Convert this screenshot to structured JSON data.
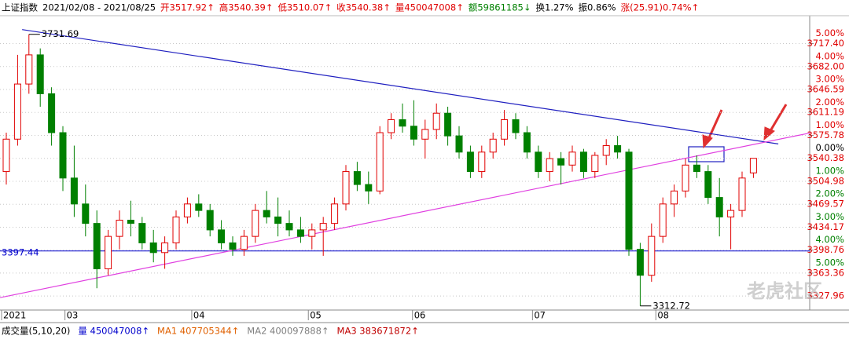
{
  "chart_data": {
    "type": "candlestick",
    "header": [
      {
        "text": "上证指数",
        "color": "#000000"
      },
      {
        "text": "2021/02/08 - 2021/08/25",
        "color": "#000000"
      },
      {
        "text": "开3517.92↑",
        "color": "#e00000"
      },
      {
        "text": "高3540.39↑",
        "color": "#e00000"
      },
      {
        "text": "低3510.07↑",
        "color": "#e00000"
      },
      {
        "text": "收3540.38↑",
        "color": "#e00000"
      },
      {
        "text": "量450047008↑",
        "color": "#e00000"
      },
      {
        "text": "额59861185↓",
        "color": "#008000"
      },
      {
        "text": "换1.27%",
        "color": "#000000"
      },
      {
        "text": "振0.86%",
        "color": "#000000"
      },
      {
        "text": "涨(25.91)0.74%↑",
        "color": "#e00000"
      }
    ],
    "open": [
      3520,
      3570,
      3655,
      3700,
      3640,
      3580,
      3510,
      3470,
      3440,
      3370,
      3420,
      3445,
      3440,
      3410,
      3395,
      3410,
      3450,
      3470,
      3460,
      3430,
      3410,
      3400,
      3420,
      3460,
      3450,
      3440,
      3430,
      3420,
      3430,
      3440,
      3470,
      3520,
      3500,
      3490,
      3580,
      3600,
      3590,
      3570,
      3585,
      3610,
      3575,
      3550,
      3520,
      3550,
      3570,
      3600,
      3580,
      3550,
      3520,
      3540,
      3530,
      3550,
      3520,
      3545,
      3560,
      3550,
      3400,
      3360,
      3420,
      3470,
      3490,
      3530,
      3520,
      3480,
      3450,
      3460,
      3517.92
    ],
    "high": [
      3580,
      3700,
      3731.69,
      3710,
      3650,
      3590,
      3560,
      3500,
      3460,
      3430,
      3460,
      3475,
      3450,
      3430,
      3420,
      3460,
      3480,
      3485,
      3470,
      3445,
      3420,
      3430,
      3470,
      3490,
      3480,
      3460,
      3450,
      3440,
      3450,
      3480,
      3530,
      3535,
      3520,
      3590,
      3610,
      3625,
      3630,
      3600,
      3625,
      3620,
      3590,
      3560,
      3560,
      3580,
      3615,
      3610,
      3590,
      3560,
      3550,
      3550,
      3560,
      3555,
      3550,
      3570,
      3575,
      3555,
      3410,
      3440,
      3480,
      3500,
      3540,
      3545,
      3530,
      3510,
      3470,
      3520,
      3540.39
    ],
    "low": [
      3500,
      3560,
      3640,
      3620,
      3560,
      3490,
      3450,
      3420,
      3340,
      3360,
      3400,
      3420,
      3400,
      3380,
      3370,
      3400,
      3440,
      3450,
      3420,
      3400,
      3390,
      3390,
      3410,
      3440,
      3420,
      3420,
      3410,
      3400,
      3390,
      3430,
      3460,
      3490,
      3470,
      3485,
      3570,
      3580,
      3560,
      3540,
      3570,
      3560,
      3540,
      3510,
      3510,
      3540,
      3560,
      3570,
      3540,
      3510,
      3505,
      3500,
      3520,
      3510,
      3510,
      3530,
      3540,
      3390,
      3312.72,
      3350,
      3410,
      3450,
      3480,
      3510,
      3470,
      3420,
      3400,
      3450,
      3510.07
    ],
    "close": [
      3570,
      3655,
      3700,
      3640,
      3580,
      3510,
      3470,
      3440,
      3370,
      3420,
      3445,
      3440,
      3410,
      3395,
      3410,
      3450,
      3470,
      3460,
      3430,
      3410,
      3400,
      3420,
      3460,
      3450,
      3440,
      3430,
      3420,
      3430,
      3440,
      3470,
      3520,
      3500,
      3490,
      3580,
      3600,
      3590,
      3570,
      3585,
      3610,
      3575,
      3550,
      3520,
      3550,
      3570,
      3600,
      3580,
      3550,
      3520,
      3540,
      3530,
      3550,
      3520,
      3545,
      3560,
      3550,
      3400,
      3360,
      3420,
      3470,
      3490,
      3530,
      3520,
      3480,
      3450,
      3460,
      3510,
      3540.38
    ],
    "up_color": "#e00000",
    "down_color": "#008000",
    "ylim": [
      3310,
      3758
    ],
    "yticks": [
      {
        "value": 3717.4,
        "label": "3717.40"
      },
      {
        "value": 3682.0,
        "label": "3682.00"
      },
      {
        "value": 3646.59,
        "label": "3646.59"
      },
      {
        "value": 3611.19,
        "label": "3611.19"
      },
      {
        "value": 3575.78,
        "label": "3575.78"
      },
      {
        "value": 3540.38,
        "label": "3540.38"
      },
      {
        "value": 3504.98,
        "label": "3504.98"
      },
      {
        "value": 3469.57,
        "label": "3469.57"
      },
      {
        "value": 3434.17,
        "label": "3434.17"
      },
      {
        "value": 3398.76,
        "label": "3398.76"
      },
      {
        "value": 3363.36,
        "label": "3363.36"
      },
      {
        "value": 3327.96,
        "label": "3327.96"
      }
    ],
    "pct_ticks": [
      {
        "value": 5,
        "label": "5.00%"
      },
      {
        "value": 4,
        "label": "4.00%"
      },
      {
        "value": 3,
        "label": "3.00%"
      },
      {
        "value": 2,
        "label": "2.00%"
      },
      {
        "value": 1,
        "label": "1.00%"
      },
      {
        "value": 0,
        "label": "0.00%"
      },
      {
        "value": -1,
        "label": "1.00%"
      },
      {
        "value": -2,
        "label": "2.00%"
      },
      {
        "value": -3,
        "label": "3.00%"
      },
      {
        "value": -4,
        "label": "4.00%"
      },
      {
        "value": -5,
        "label": "5.00%"
      }
    ],
    "xticks": [
      {
        "value": 0,
        "label": "2021"
      },
      {
        "value": 5.6,
        "label": "03"
      },
      {
        "value": 16.8,
        "label": "04"
      },
      {
        "value": 27.1,
        "label": "05"
      },
      {
        "value": 36.3,
        "label": "06"
      },
      {
        "value": 46.9,
        "label": "07"
      },
      {
        "value": 57.8,
        "label": "08"
      }
    ],
    "annotations": [
      {
        "text": "3731.69",
        "x": 2,
        "y": 3731.69
      },
      {
        "text": "3312.72",
        "x": 56,
        "y": 3312.72
      }
    ],
    "hline": {
      "value": 3397.44,
      "label": "3397.44",
      "color": "#0000cc"
    },
    "trend_lines": [
      {
        "color": "#2020c0",
        "from": [
          1.4,
          3739
        ],
        "to": [
          68.2,
          3562.6
        ]
      },
      {
        "color": "#e040e0",
        "from": [
          -0.55,
          3325.5
        ],
        "to": [
          71,
          3579.5
        ]
      }
    ],
    "watermark": "老虎社区",
    "footer": [
      {
        "text": "成交量(5,10,20)",
        "color": "#000000"
      },
      {
        "text": "量 450047008↑",
        "color": "#0000cc"
      },
      {
        "text": "MA1 407705344↑",
        "color": "#e06000"
      },
      {
        "text": "MA2 400097888↑",
        "color": "#808080"
      },
      {
        "text": "MA3 383671872↑",
        "color": "#c00000"
      }
    ]
  }
}
